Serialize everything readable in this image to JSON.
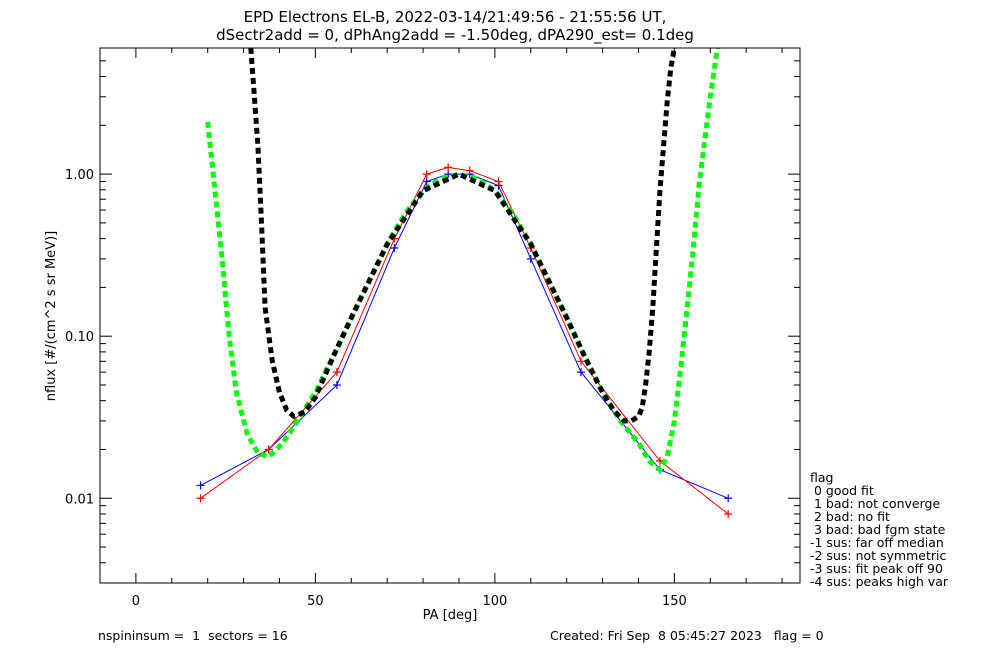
{
  "chart_data": {
    "type": "line",
    "title": "EPD Electrons EL-B, 2022-03-14/21:49:56 - 21:55:56 UT,",
    "subtitle": "dSectr2add = 0, dPhAng2add = -1.50deg, dPA290_est=   0.1deg",
    "xlabel": "PA [deg]",
    "ylabel": "nflux [#/(cm^2 s sr MeV)]",
    "xlim": [
      -10,
      185
    ],
    "ylim": [
      0.003,
      6.0
    ],
    "yscale": "log",
    "x_ticks": [
      0,
      50,
      100,
      150
    ],
    "x_tick_labels": [
      "0",
      "50",
      "100",
      "150"
    ],
    "y_ticks": [
      0.01,
      0.1,
      1.0
    ],
    "y_tick_labels": [
      "0.01",
      "0.10",
      "1.00"
    ],
    "grid": false,
    "legend_position": "right",
    "legend": {
      "title": "flag",
      "entries": [
        " 0 good fit",
        " 1 bad: not converge",
        " 2 bad: no fit",
        " 3 bad: bad fgm state",
        "-1 sus: far off median",
        "-2 sus: not symmetric",
        "-3 sus: fit peak off 90",
        "-4 sus: peaks high var"
      ]
    },
    "series": [
      {
        "color": "#0000ff",
        "style": "solid-plus-markers",
        "x": [
          18,
          37,
          56,
          72,
          81,
          87,
          93,
          101,
          110,
          124,
          146,
          165
        ],
        "y": [
          0.012,
          0.02,
          0.05,
          0.35,
          0.9,
          1.0,
          1.0,
          0.85,
          0.3,
          0.06,
          0.015,
          0.01
        ]
      },
      {
        "color": "#ff0000",
        "style": "solid-plus-markers",
        "x": [
          18,
          37,
          56,
          72,
          81,
          87,
          93,
          101,
          110,
          124,
          146,
          165
        ],
        "y": [
          0.01,
          0.02,
          0.06,
          0.4,
          1.0,
          1.1,
          1.05,
          0.9,
          0.35,
          0.07,
          0.017,
          0.008
        ]
      },
      {
        "color": "#00ff00",
        "style": "dashed",
        "x": [
          20,
          22,
          24,
          26,
          28,
          31,
          34,
          37,
          41,
          45,
          50,
          55,
          60,
          65,
          70,
          75,
          80,
          85,
          90,
          95,
          100,
          105,
          110,
          115,
          120,
          125,
          130,
          135,
          140,
          143,
          146,
          148,
          150,
          152,
          155,
          157,
          160,
          162
        ],
        "y": [
          2.1,
          0.8,
          0.3,
          0.1,
          0.045,
          0.025,
          0.019,
          0.018,
          0.022,
          0.03,
          0.045,
          0.075,
          0.13,
          0.22,
          0.37,
          0.57,
          0.79,
          0.94,
          1.0,
          0.94,
          0.79,
          0.57,
          0.37,
          0.22,
          0.13,
          0.075,
          0.045,
          0.03,
          0.022,
          0.017,
          0.015,
          0.018,
          0.03,
          0.07,
          0.3,
          0.9,
          3.0,
          6.0
        ]
      },
      {
        "color": "#000000",
        "style": "dashed",
        "x": [
          32,
          33,
          34,
          35,
          36,
          38,
          40,
          42,
          44,
          47,
          50,
          55,
          60,
          70,
          80,
          90,
          100,
          110,
          120,
          125,
          130,
          133,
          136,
          138,
          140,
          141,
          142,
          143,
          144,
          145,
          146,
          147,
          148,
          149,
          150
        ],
        "y": [
          6.0,
          3.0,
          1.5,
          0.5,
          0.15,
          0.07,
          0.045,
          0.035,
          0.032,
          0.034,
          0.042,
          0.075,
          0.13,
          0.37,
          0.79,
          1.0,
          0.79,
          0.37,
          0.13,
          0.075,
          0.045,
          0.035,
          0.03,
          0.03,
          0.032,
          0.036,
          0.05,
          0.08,
          0.15,
          0.35,
          0.8,
          1.5,
          2.8,
          4.5,
          6.0
        ]
      }
    ]
  },
  "footer": {
    "left": "nspininsum =  1  sectors = 16",
    "right": "Created: Fri Sep  8 05:45:27 2023   flag = 0"
  }
}
